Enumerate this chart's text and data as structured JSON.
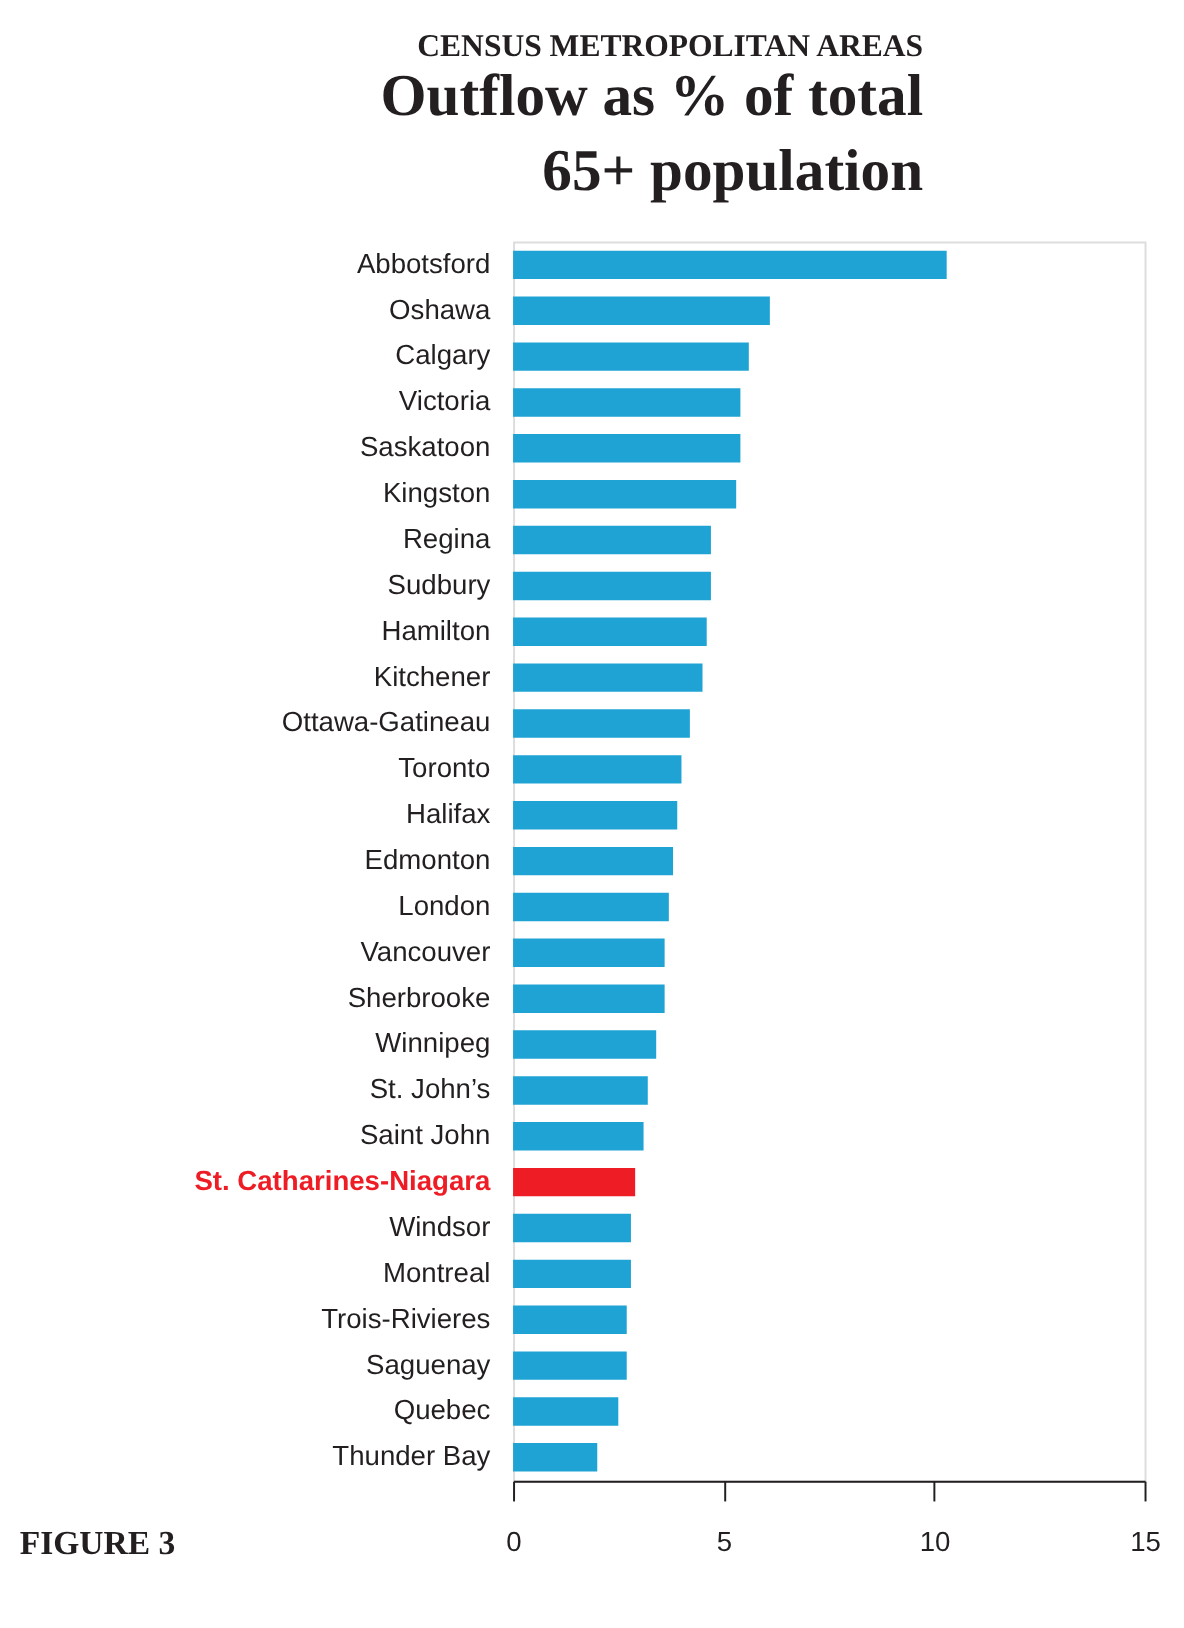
{
  "chart_data": {
    "type": "bar",
    "orientation": "horizontal",
    "subtitle": "CENSUS METROPOLITAN AREAS",
    "title": "Outflow as % of total 65+ population",
    "categories": [
      "Abbotsford",
      "Oshawa",
      "Calgary",
      "Victoria",
      "Saskatoon",
      "Kingston",
      "Regina",
      "Sudbury",
      "Hamilton",
      "Kitchener",
      "Ottawa-Gatineau",
      "Toronto",
      "Halifax",
      "Edmonton",
      "London",
      "Vancouver",
      "Sherbrooke",
      "Winnipeg",
      "St. John’s",
      "Saint John",
      "St. Catharines-Niagara",
      "Windsor",
      "Montreal",
      "Trois-Rivieres",
      "Saguenay",
      "Quebec",
      "Thunder Bay"
    ],
    "values": [
      10.3,
      6.1,
      5.6,
      5.4,
      5.4,
      5.3,
      4.7,
      4.7,
      4.6,
      4.5,
      4.2,
      4.0,
      3.9,
      3.8,
      3.7,
      3.6,
      3.6,
      3.4,
      3.2,
      3.1,
      2.9,
      2.8,
      2.8,
      2.7,
      2.7,
      2.5,
      2.0
    ],
    "colors": [
      "#1fa3d4",
      "#1fa3d4",
      "#1fa3d4",
      "#1fa3d4",
      "#1fa3d4",
      "#1fa3d4",
      "#1fa3d4",
      "#1fa3d4",
      "#1fa3d4",
      "#1fa3d4",
      "#1fa3d4",
      "#1fa3d4",
      "#1fa3d4",
      "#1fa3d4",
      "#1fa3d4",
      "#1fa3d4",
      "#1fa3d4",
      "#1fa3d4",
      "#1fa3d4",
      "#1fa3d4",
      "#ee1c25",
      "#1fa3d4",
      "#1fa3d4",
      "#1fa3d4",
      "#1fa3d4",
      "#1fa3d4",
      "#1fa3d4"
    ],
    "xlim": [
      0,
      15
    ],
    "xticks": [
      0,
      5,
      10,
      15
    ],
    "grid": false,
    "annotations": [
      "FIGURE 3"
    ]
  }
}
